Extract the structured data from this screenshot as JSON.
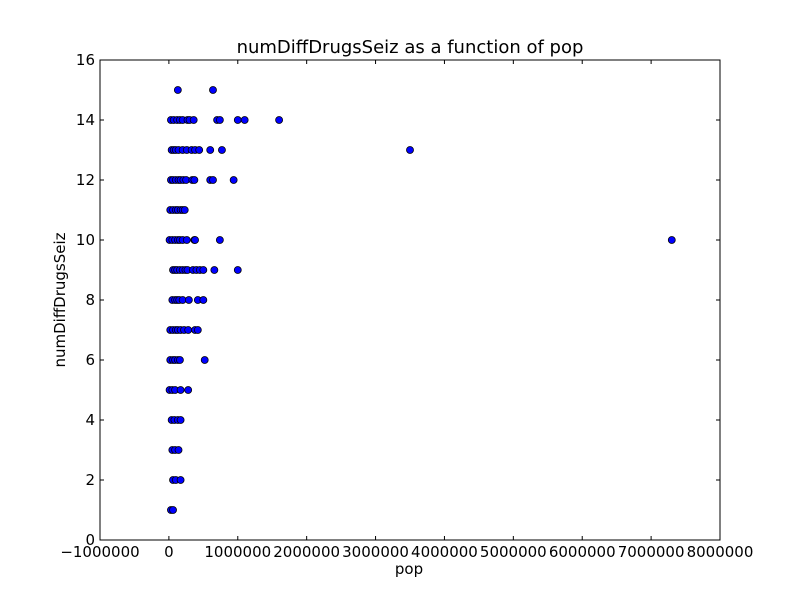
{
  "chart_data": {
    "type": "scatter",
    "title": "numDiffDrugsSeiz as a function of pop",
    "xlabel": "pop",
    "ylabel": "numDiffDrugsSeiz",
    "xlim": [
      -1000000,
      8000000
    ],
    "ylim": [
      0,
      16
    ],
    "xticks": [
      -1000000,
      0,
      1000000,
      2000000,
      3000000,
      4000000,
      5000000,
      6000000,
      7000000,
      8000000
    ],
    "xtick_labels": [
      "−1000000",
      "0",
      "1000000",
      "2000000",
      "3000000",
      "4000000",
      "5000000",
      "6000000",
      "7000000",
      "8000000"
    ],
    "yticks": [
      0,
      2,
      4,
      6,
      8,
      10,
      12,
      14,
      16
    ],
    "ytick_labels": [
      "0",
      "2",
      "4",
      "6",
      "8",
      "10",
      "12",
      "14",
      "16"
    ],
    "grid": false,
    "marker_color": "#0000ff",
    "series": [
      {
        "x": [
          130000,
          640000,
          30000,
          70000,
          120000,
          160000,
          200000,
          270000,
          300000,
          360000,
          700000,
          740000,
          1000000,
          1100000,
          1600000,
          40000,
          70000,
          100000,
          140000,
          200000,
          260000,
          330000,
          380000,
          440000,
          600000,
          770000,
          3500000,
          30000,
          60000,
          100000,
          140000,
          170000,
          210000,
          250000,
          340000,
          370000,
          600000,
          640000,
          940000,
          20000,
          60000,
          100000,
          130000,
          170000,
          200000,
          230000,
          10000,
          50000,
          90000,
          130000,
          160000,
          200000,
          260000,
          370000,
          380000,
          740000,
          7300000,
          60000,
          90000,
          120000,
          160000,
          200000,
          240000,
          270000,
          350000,
          400000,
          450000,
          500000,
          660000,
          1000000,
          50000,
          90000,
          120000,
          150000,
          200000,
          290000,
          420000,
          500000,
          20000,
          60000,
          100000,
          130000,
          170000,
          220000,
          280000,
          380000,
          420000,
          20000,
          60000,
          90000,
          130000,
          160000,
          520000,
          10000,
          50000,
          90000,
          170000,
          280000,
          40000,
          80000,
          130000,
          170000,
          50000,
          90000,
          140000,
          60000,
          100000,
          170000,
          30000,
          60000
        ],
        "y": [
          15,
          15,
          14,
          14,
          14,
          14,
          14,
          14,
          14,
          14,
          14,
          14,
          14,
          14,
          14,
          13,
          13,
          13,
          13,
          13,
          13,
          13,
          13,
          13,
          13,
          13,
          13,
          12,
          12,
          12,
          12,
          12,
          12,
          12,
          12,
          12,
          12,
          12,
          12,
          11,
          11,
          11,
          11,
          11,
          11,
          11,
          10,
          10,
          10,
          10,
          10,
          10,
          10,
          10,
          10,
          10,
          10,
          9,
          9,
          9,
          9,
          9,
          9,
          9,
          9,
          9,
          9,
          9,
          9,
          9,
          8,
          8,
          8,
          8,
          8,
          8,
          8,
          8,
          7,
          7,
          7,
          7,
          7,
          7,
          7,
          7,
          7,
          6,
          6,
          6,
          6,
          6,
          6,
          5,
          5,
          5,
          5,
          5,
          4,
          4,
          4,
          4,
          3,
          3,
          3,
          2,
          2,
          2,
          1,
          1
        ]
      }
    ]
  }
}
